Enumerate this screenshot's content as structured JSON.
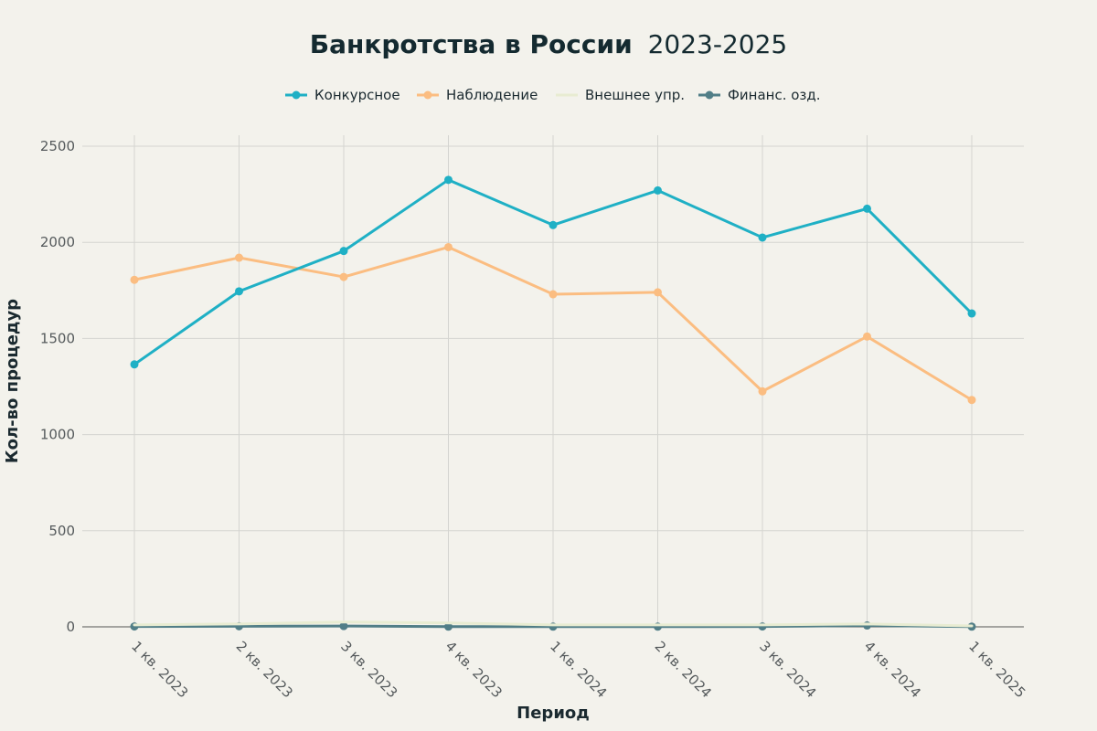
{
  "chart_data": {
    "type": "line",
    "title": {
      "bold": "Банкротства в России",
      "normal": "2023-2025"
    },
    "xlabel": "Период",
    "ylabel": "Кол-во процедур",
    "categories": [
      "1 кв. 2023",
      "2 кв. 2023",
      "3 кв. 2023",
      "4 кв. 2023",
      "1 кв. 2024",
      "2 кв. 2024",
      "3 кв. 2024",
      "4 кв. 2024",
      "1 кв. 2025"
    ],
    "ylim": [
      0,
      2500
    ],
    "yticks": [
      0,
      500,
      1000,
      1500,
      2000,
      2500
    ],
    "grid": true,
    "legend_position": "top-center",
    "series": [
      {
        "name": "Конкурсное",
        "color": "#1fb0c5",
        "markers": true,
        "values": [
          1365,
          1745,
          1955,
          2325,
          2090,
          2270,
          2025,
          2175,
          1630
        ]
      },
      {
        "name": "Наблюдение",
        "color": "#fbbd81",
        "markers": true,
        "values": [
          1805,
          1920,
          1820,
          1975,
          1730,
          1740,
          1225,
          1510,
          1180
        ]
      },
      {
        "name": "Внешнее упр.",
        "color": "#e8ecd2",
        "markers": false,
        "values": [
          10,
          15,
          25,
          20,
          10,
          10,
          10,
          15,
          5
        ]
      },
      {
        "name": "Финанс. озд.",
        "color": "#517e87",
        "markers": true,
        "values": [
          2,
          3,
          4,
          1,
          1,
          1,
          2,
          7,
          1
        ]
      }
    ]
  }
}
